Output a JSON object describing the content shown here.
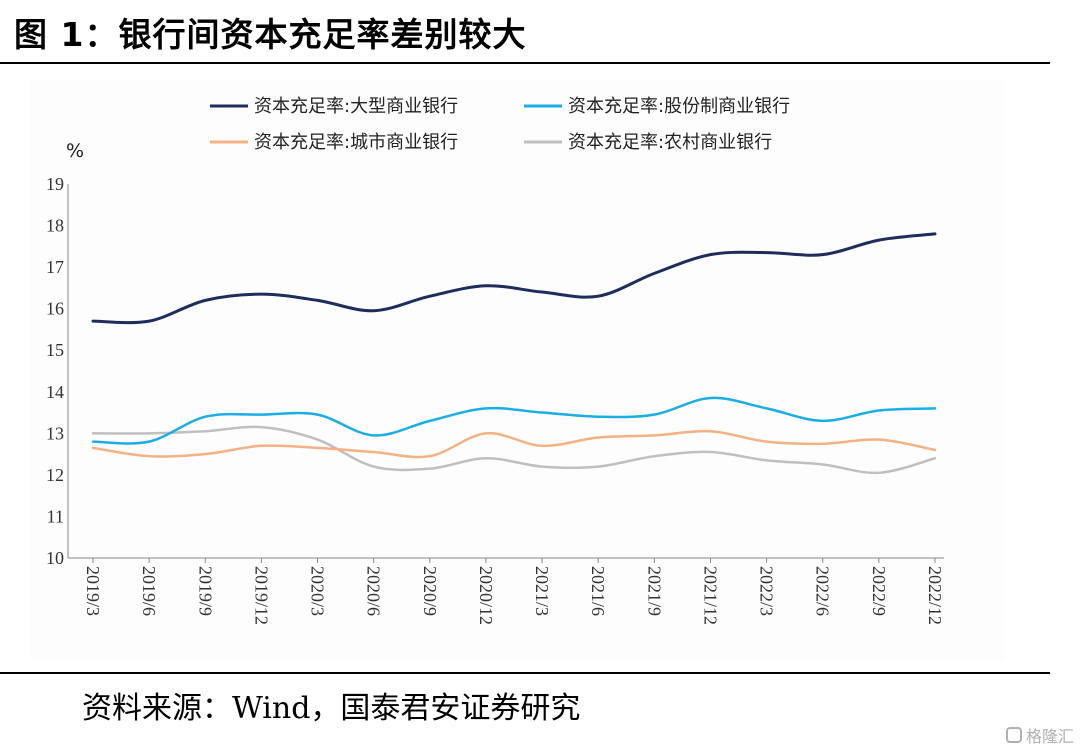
{
  "figure": {
    "title": "图 1：银行间资本充足率差别较大",
    "source": "资料来源：Wind，国泰君安证券研究",
    "watermark": "格隆汇"
  },
  "chart_data": {
    "type": "line",
    "title": "",
    "xlabel": "",
    "ylabel": "%",
    "ylim": [
      10,
      19
    ],
    "yticks": [
      10,
      11,
      12,
      13,
      14,
      15,
      16,
      17,
      18,
      19
    ],
    "grid": false,
    "legend_position": "top",
    "categories": [
      "2019/3",
      "2019/6",
      "2019/9",
      "2019/12",
      "2020/3",
      "2020/6",
      "2020/9",
      "2020/12",
      "2021/3",
      "2021/6",
      "2021/9",
      "2021/12",
      "2022/3",
      "2022/6",
      "2022/9",
      "2022/12"
    ],
    "series": [
      {
        "name": "资本充足率:大型商业银行",
        "color": "#1f2d5c",
        "values": [
          15.7,
          15.7,
          16.2,
          16.35,
          16.2,
          15.95,
          16.3,
          16.55,
          16.4,
          16.3,
          16.85,
          17.3,
          17.35,
          17.3,
          17.65,
          17.8
        ]
      },
      {
        "name": "资本充足率:股份制商业银行",
        "color": "#1aaee5",
        "values": [
          12.8,
          12.8,
          13.4,
          13.45,
          13.45,
          12.95,
          13.3,
          13.6,
          13.5,
          13.4,
          13.45,
          13.85,
          13.6,
          13.3,
          13.55,
          13.6
        ]
      },
      {
        "name": "资本充足率:城市商业银行",
        "color": "#f4b183",
        "values": [
          12.65,
          12.45,
          12.5,
          12.7,
          12.65,
          12.55,
          12.45,
          13.0,
          12.7,
          12.9,
          12.95,
          13.05,
          12.8,
          12.75,
          12.85,
          12.6
        ]
      },
      {
        "name": "资本充足率:农村商业银行",
        "color": "#bfbfbf",
        "values": [
          13.0,
          13.0,
          13.05,
          13.15,
          12.85,
          12.2,
          12.15,
          12.4,
          12.2,
          12.2,
          12.45,
          12.55,
          12.35,
          12.25,
          12.05,
          12.4
        ]
      }
    ]
  }
}
